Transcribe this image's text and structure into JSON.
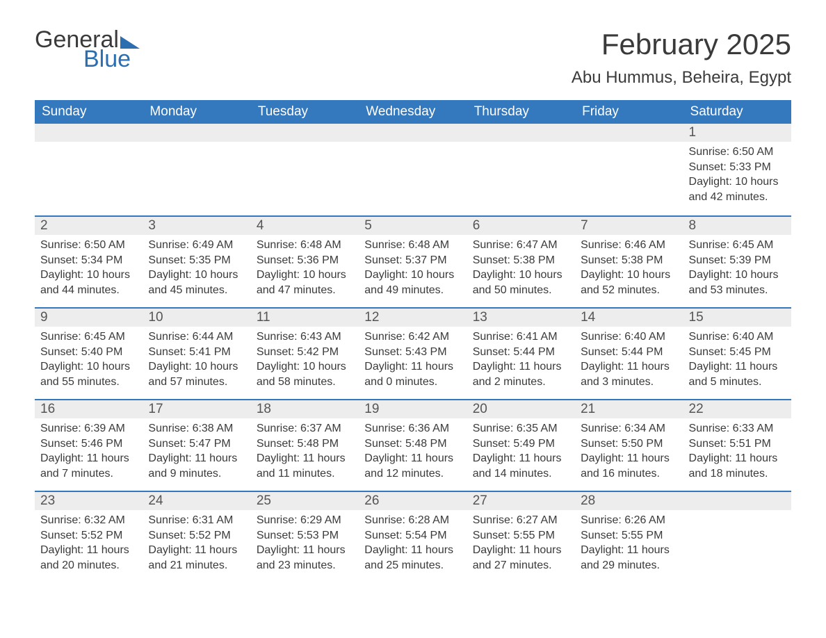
{
  "logo": {
    "word1": "General",
    "word2": "Blue"
  },
  "title": "February 2025",
  "location": "Abu Hummus, Beheira, Egypt",
  "colors": {
    "header_bg": "#3478bd",
    "header_text": "#ffffff",
    "daynum_bg": "#ededed",
    "page_bg": "#ffffff",
    "text": "#3a3a3a",
    "accent": "#2c6fb0",
    "row_border": "#3478bd"
  },
  "fonts": {
    "title_size": 42,
    "location_size": 24,
    "th_size": 19,
    "daynum_size": 19,
    "body_size": 16
  },
  "daysOfWeek": [
    "Sunday",
    "Monday",
    "Tuesday",
    "Wednesday",
    "Thursday",
    "Friday",
    "Saturday"
  ],
  "grid": {
    "rows": 5,
    "cols": 7,
    "firstDayOffset": 6,
    "lastDay": 28
  },
  "days": {
    "1": {
      "sunrise": "6:50 AM",
      "sunset": "5:33 PM",
      "daylight": "10 hours and 42 minutes."
    },
    "2": {
      "sunrise": "6:50 AM",
      "sunset": "5:34 PM",
      "daylight": "10 hours and 44 minutes."
    },
    "3": {
      "sunrise": "6:49 AM",
      "sunset": "5:35 PM",
      "daylight": "10 hours and 45 minutes."
    },
    "4": {
      "sunrise": "6:48 AM",
      "sunset": "5:36 PM",
      "daylight": "10 hours and 47 minutes."
    },
    "5": {
      "sunrise": "6:48 AM",
      "sunset": "5:37 PM",
      "daylight": "10 hours and 49 minutes."
    },
    "6": {
      "sunrise": "6:47 AM",
      "sunset": "5:38 PM",
      "daylight": "10 hours and 50 minutes."
    },
    "7": {
      "sunrise": "6:46 AM",
      "sunset": "5:38 PM",
      "daylight": "10 hours and 52 minutes."
    },
    "8": {
      "sunrise": "6:45 AM",
      "sunset": "5:39 PM",
      "daylight": "10 hours and 53 minutes."
    },
    "9": {
      "sunrise": "6:45 AM",
      "sunset": "5:40 PM",
      "daylight": "10 hours and 55 minutes."
    },
    "10": {
      "sunrise": "6:44 AM",
      "sunset": "5:41 PM",
      "daylight": "10 hours and 57 minutes."
    },
    "11": {
      "sunrise": "6:43 AM",
      "sunset": "5:42 PM",
      "daylight": "10 hours and 58 minutes."
    },
    "12": {
      "sunrise": "6:42 AM",
      "sunset": "5:43 PM",
      "daylight": "11 hours and 0 minutes."
    },
    "13": {
      "sunrise": "6:41 AM",
      "sunset": "5:44 PM",
      "daylight": "11 hours and 2 minutes."
    },
    "14": {
      "sunrise": "6:40 AM",
      "sunset": "5:44 PM",
      "daylight": "11 hours and 3 minutes."
    },
    "15": {
      "sunrise": "6:40 AM",
      "sunset": "5:45 PM",
      "daylight": "11 hours and 5 minutes."
    },
    "16": {
      "sunrise": "6:39 AM",
      "sunset": "5:46 PM",
      "daylight": "11 hours and 7 minutes."
    },
    "17": {
      "sunrise": "6:38 AM",
      "sunset": "5:47 PM",
      "daylight": "11 hours and 9 minutes."
    },
    "18": {
      "sunrise": "6:37 AM",
      "sunset": "5:48 PM",
      "daylight": "11 hours and 11 minutes."
    },
    "19": {
      "sunrise": "6:36 AM",
      "sunset": "5:48 PM",
      "daylight": "11 hours and 12 minutes."
    },
    "20": {
      "sunrise": "6:35 AM",
      "sunset": "5:49 PM",
      "daylight": "11 hours and 14 minutes."
    },
    "21": {
      "sunrise": "6:34 AM",
      "sunset": "5:50 PM",
      "daylight": "11 hours and 16 minutes."
    },
    "22": {
      "sunrise": "6:33 AM",
      "sunset": "5:51 PM",
      "daylight": "11 hours and 18 minutes."
    },
    "23": {
      "sunrise": "6:32 AM",
      "sunset": "5:52 PM",
      "daylight": "11 hours and 20 minutes."
    },
    "24": {
      "sunrise": "6:31 AM",
      "sunset": "5:52 PM",
      "daylight": "11 hours and 21 minutes."
    },
    "25": {
      "sunrise": "6:29 AM",
      "sunset": "5:53 PM",
      "daylight": "11 hours and 23 minutes."
    },
    "26": {
      "sunrise": "6:28 AM",
      "sunset": "5:54 PM",
      "daylight": "11 hours and 25 minutes."
    },
    "27": {
      "sunrise": "6:27 AM",
      "sunset": "5:55 PM",
      "daylight": "11 hours and 27 minutes."
    },
    "28": {
      "sunrise": "6:26 AM",
      "sunset": "5:55 PM",
      "daylight": "11 hours and 29 minutes."
    }
  },
  "labels": {
    "sunrise": "Sunrise: ",
    "sunset": "Sunset: ",
    "daylight": "Daylight: "
  }
}
